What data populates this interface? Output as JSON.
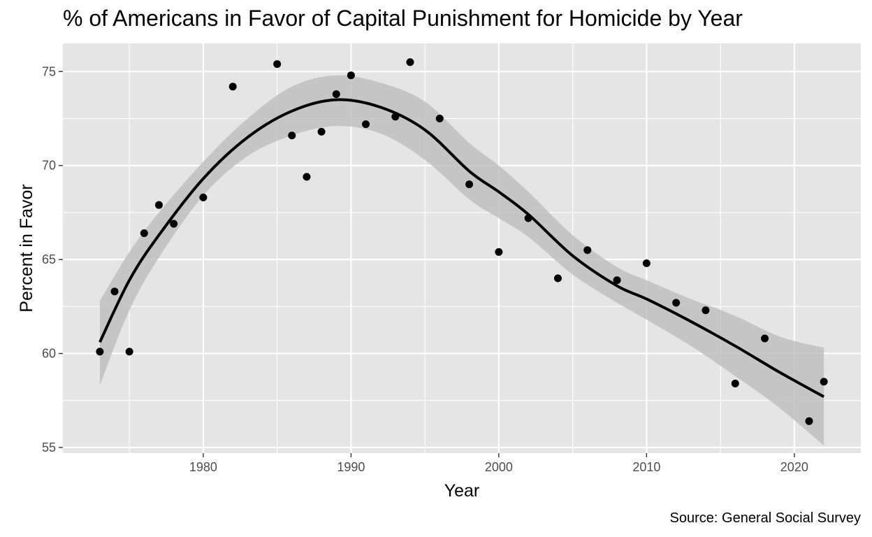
{
  "chart_data": {
    "type": "scatter",
    "title": "% of Americans in Favor of Capital Punishment for Homicide by Year",
    "caption": "Source: General Social Survey",
    "xlabel": "Year",
    "ylabel": "Percent in Favor",
    "xlim": [
      1970.5,
      2024.5
    ],
    "ylim": [
      54.7,
      76.5
    ],
    "x_ticks": [
      1980,
      1990,
      2000,
      2010,
      2020
    ],
    "y_ticks": [
      55,
      60,
      65,
      70,
      75
    ],
    "grid": true,
    "points": [
      {
        "x": 1973,
        "y": 60.1
      },
      {
        "x": 1974,
        "y": 63.3
      },
      {
        "x": 1975,
        "y": 60.1
      },
      {
        "x": 1976,
        "y": 66.4
      },
      {
        "x": 1977,
        "y": 67.9
      },
      {
        "x": 1978,
        "y": 66.9
      },
      {
        "x": 1980,
        "y": 68.3
      },
      {
        "x": 1982,
        "y": 74.2
      },
      {
        "x": 1985,
        "y": 75.4
      },
      {
        "x": 1986,
        "y": 71.6
      },
      {
        "x": 1987,
        "y": 69.4
      },
      {
        "x": 1988,
        "y": 71.8
      },
      {
        "x": 1989,
        "y": 73.8
      },
      {
        "x": 1990,
        "y": 74.8
      },
      {
        "x": 1991,
        "y": 72.2
      },
      {
        "x": 1993,
        "y": 72.6
      },
      {
        "x": 1994,
        "y": 75.5
      },
      {
        "x": 1996,
        "y": 72.5
      },
      {
        "x": 1998,
        "y": 69.0
      },
      {
        "x": 2000,
        "y": 65.4
      },
      {
        "x": 2002,
        "y": 67.2
      },
      {
        "x": 2004,
        "y": 64.0
      },
      {
        "x": 2006,
        "y": 65.5
      },
      {
        "x": 2008,
        "y": 63.9
      },
      {
        "x": 2010,
        "y": 64.8
      },
      {
        "x": 2012,
        "y": 62.7
      },
      {
        "x": 2014,
        "y": 62.3
      },
      {
        "x": 2016,
        "y": 58.4
      },
      {
        "x": 2018,
        "y": 60.8
      },
      {
        "x": 2021,
        "y": 56.4
      },
      {
        "x": 2022,
        "y": 58.5
      }
    ],
    "smooth": {
      "x": [
        1973,
        1975,
        1977,
        1980,
        1983,
        1986,
        1989,
        1992,
        1995,
        1998,
        2000,
        2002,
        2005,
        2008,
        2010,
        2013,
        2016,
        2019,
        2022
      ],
      "y": [
        60.6,
        63.9,
        66.3,
        69.3,
        71.5,
        72.9,
        73.5,
        73.1,
        71.9,
        69.7,
        68.6,
        67.4,
        65.2,
        63.6,
        62.9,
        61.7,
        60.4,
        59.0,
        57.7
      ],
      "lower": [
        58.3,
        62.3,
        65.1,
        68.4,
        70.5,
        71.6,
        72.1,
        71.7,
        70.3,
        68.2,
        67.2,
        66.2,
        64.2,
        62.7,
        61.8,
        60.4,
        58.8,
        57.1,
        55.1
      ],
      "upper": [
        62.8,
        65.4,
        67.5,
        70.2,
        72.5,
        74.2,
        74.8,
        74.4,
        73.4,
        71.2,
        70.0,
        68.6,
        66.3,
        64.6,
        63.9,
        62.9,
        62.0,
        60.9,
        60.3
      ]
    },
    "colors": {
      "panel": "#e5e5e5",
      "grid_major": "#ffffff",
      "points": "#000000",
      "line": "#000000",
      "ribbon": "#c0c0c0"
    }
  }
}
